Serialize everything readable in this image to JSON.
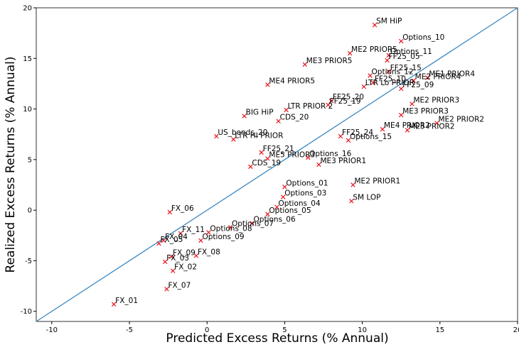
{
  "chart_data": {
    "type": "scatter",
    "x_label": "Predicted Excess Returns (% Annual)",
    "y_label": "Realized Excess Returns (% Annual)",
    "xlim": [
      -11,
      20
    ],
    "ylim": [
      -11,
      20
    ],
    "xticks": [
      -10,
      -5,
      0,
      5,
      10,
      15,
      20
    ],
    "yticks": [
      -10,
      -5,
      0,
      5,
      10,
      15,
      20
    ],
    "marker_color": "#e8141c",
    "diagonal": true,
    "diagonal_color": "#3a87c0",
    "labels": [
      "SM HiP",
      "Options_10",
      "ME2 PRIOR5",
      "Options_11",
      "FF25_05",
      "ME3 PRIOR5",
      "FF25_15",
      "Options_12",
      "ME1 PRIOR4",
      "ME2 PRIOR4",
      "FF25_10",
      "LTR Lo PRIOR",
      "FF25_09",
      "ME4 PRIOR5",
      "FF25_20",
      "FF25_19",
      "LTR PRIOR 2",
      "ME2 PRIOR3",
      "ME3 PRIOR3",
      "ME2 PRIOR2",
      "ME3 PRIOR2",
      "ME4 PRIOR2",
      "BIG HiP",
      "CDS_20",
      "US_bonds_20",
      "LTR HI PRIOR",
      "FF25_24",
      "Options_15",
      "FF25_21",
      "Options_16",
      "ME5 PRIOR3",
      "ME3 PRIOR1",
      "CDS_19",
      "ME2 PRIOR1",
      "Options_01",
      "Options_03",
      "SM LOP",
      "Options_04",
      "Options_05",
      "FX_06",
      "Options_06",
      "Options_07",
      "FX_11",
      "Options_08",
      "Options_09",
      "FX_04",
      "FX_05",
      "FX_09",
      "FX_08",
      "FX_03",
      "FX_02",
      "FX_07",
      "FX_01"
    ],
    "x": [
      10.8,
      12.5,
      9.2,
      11.7,
      11.6,
      6.3,
      11.7,
      10.5,
      14.2,
      13.3,
      10.7,
      10.1,
      12.5,
      3.9,
      8.0,
      7.8,
      5.1,
      13.2,
      12.5,
      14.8,
      12.9,
      11.3,
      2.4,
      4.6,
      0.6,
      1.7,
      8.6,
      9.1,
      3.5,
      6.5,
      3.9,
      7.2,
      2.8,
      9.4,
      5.0,
      4.9,
      9.3,
      4.5,
      3.9,
      -2.4,
      2.9,
      1.5,
      -1.7,
      0.1,
      -0.4,
      -2.8,
      -3.1,
      -2.3,
      -0.7,
      -2.7,
      -2.2,
      -2.6,
      -6.0
    ],
    "values": [
      18.3,
      16.7,
      15.5,
      15.3,
      14.8,
      14.4,
      13.7,
      13.3,
      13.1,
      12.8,
      12.6,
      12.2,
      12.0,
      12.4,
      10.8,
      10.4,
      9.9,
      10.5,
      9.4,
      8.6,
      7.9,
      8.0,
      9.3,
      8.8,
      7.3,
      7.0,
      7.3,
      6.9,
      5.7,
      5.2,
      5.1,
      4.5,
      4.3,
      2.5,
      2.3,
      1.3,
      0.9,
      0.3,
      -0.4,
      -0.2,
      -1.3,
      -1.7,
      -2.3,
      -2.2,
      -3.0,
      -3.0,
      -3.3,
      -4.6,
      -4.5,
      -5.1,
      -6.0,
      -7.8,
      -9.3
    ]
  }
}
